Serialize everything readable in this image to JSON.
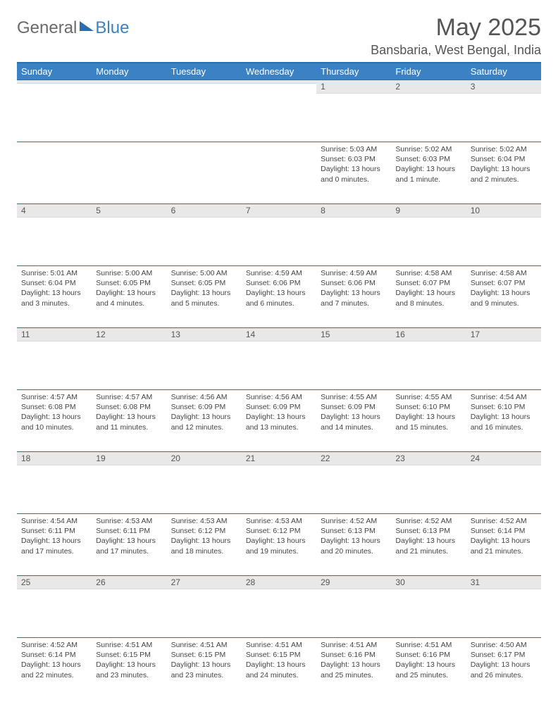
{
  "brand": {
    "text1": "General",
    "text2": "Blue"
  },
  "title": "May 2025",
  "location": "Bansbaria, West Bengal, India",
  "colors": {
    "header_bg": "#3b82c4",
    "border": "#2a6db0",
    "daynum_bg": "#e8e8e8",
    "text": "#444444"
  },
  "weekdays": [
    "Sunday",
    "Monday",
    "Tuesday",
    "Wednesday",
    "Thursday",
    "Friday",
    "Saturday"
  ],
  "weeks": [
    [
      null,
      null,
      null,
      null,
      {
        "n": "1",
        "sr": "Sunrise: 5:03 AM",
        "ss": "Sunset: 6:03 PM",
        "dl": "Daylight: 13 hours and 0 minutes."
      },
      {
        "n": "2",
        "sr": "Sunrise: 5:02 AM",
        "ss": "Sunset: 6:03 PM",
        "dl": "Daylight: 13 hours and 1 minute."
      },
      {
        "n": "3",
        "sr": "Sunrise: 5:02 AM",
        "ss": "Sunset: 6:04 PM",
        "dl": "Daylight: 13 hours and 2 minutes."
      }
    ],
    [
      {
        "n": "4",
        "sr": "Sunrise: 5:01 AM",
        "ss": "Sunset: 6:04 PM",
        "dl": "Daylight: 13 hours and 3 minutes."
      },
      {
        "n": "5",
        "sr": "Sunrise: 5:00 AM",
        "ss": "Sunset: 6:05 PM",
        "dl": "Daylight: 13 hours and 4 minutes."
      },
      {
        "n": "6",
        "sr": "Sunrise: 5:00 AM",
        "ss": "Sunset: 6:05 PM",
        "dl": "Daylight: 13 hours and 5 minutes."
      },
      {
        "n": "7",
        "sr": "Sunrise: 4:59 AM",
        "ss": "Sunset: 6:06 PM",
        "dl": "Daylight: 13 hours and 6 minutes."
      },
      {
        "n": "8",
        "sr": "Sunrise: 4:59 AM",
        "ss": "Sunset: 6:06 PM",
        "dl": "Daylight: 13 hours and 7 minutes."
      },
      {
        "n": "9",
        "sr": "Sunrise: 4:58 AM",
        "ss": "Sunset: 6:07 PM",
        "dl": "Daylight: 13 hours and 8 minutes."
      },
      {
        "n": "10",
        "sr": "Sunrise: 4:58 AM",
        "ss": "Sunset: 6:07 PM",
        "dl": "Daylight: 13 hours and 9 minutes."
      }
    ],
    [
      {
        "n": "11",
        "sr": "Sunrise: 4:57 AM",
        "ss": "Sunset: 6:08 PM",
        "dl": "Daylight: 13 hours and 10 minutes."
      },
      {
        "n": "12",
        "sr": "Sunrise: 4:57 AM",
        "ss": "Sunset: 6:08 PM",
        "dl": "Daylight: 13 hours and 11 minutes."
      },
      {
        "n": "13",
        "sr": "Sunrise: 4:56 AM",
        "ss": "Sunset: 6:09 PM",
        "dl": "Daylight: 13 hours and 12 minutes."
      },
      {
        "n": "14",
        "sr": "Sunrise: 4:56 AM",
        "ss": "Sunset: 6:09 PM",
        "dl": "Daylight: 13 hours and 13 minutes."
      },
      {
        "n": "15",
        "sr": "Sunrise: 4:55 AM",
        "ss": "Sunset: 6:09 PM",
        "dl": "Daylight: 13 hours and 14 minutes."
      },
      {
        "n": "16",
        "sr": "Sunrise: 4:55 AM",
        "ss": "Sunset: 6:10 PM",
        "dl": "Daylight: 13 hours and 15 minutes."
      },
      {
        "n": "17",
        "sr": "Sunrise: 4:54 AM",
        "ss": "Sunset: 6:10 PM",
        "dl": "Daylight: 13 hours and 16 minutes."
      }
    ],
    [
      {
        "n": "18",
        "sr": "Sunrise: 4:54 AM",
        "ss": "Sunset: 6:11 PM",
        "dl": "Daylight: 13 hours and 17 minutes."
      },
      {
        "n": "19",
        "sr": "Sunrise: 4:53 AM",
        "ss": "Sunset: 6:11 PM",
        "dl": "Daylight: 13 hours and 17 minutes."
      },
      {
        "n": "20",
        "sr": "Sunrise: 4:53 AM",
        "ss": "Sunset: 6:12 PM",
        "dl": "Daylight: 13 hours and 18 minutes."
      },
      {
        "n": "21",
        "sr": "Sunrise: 4:53 AM",
        "ss": "Sunset: 6:12 PM",
        "dl": "Daylight: 13 hours and 19 minutes."
      },
      {
        "n": "22",
        "sr": "Sunrise: 4:52 AM",
        "ss": "Sunset: 6:13 PM",
        "dl": "Daylight: 13 hours and 20 minutes."
      },
      {
        "n": "23",
        "sr": "Sunrise: 4:52 AM",
        "ss": "Sunset: 6:13 PM",
        "dl": "Daylight: 13 hours and 21 minutes."
      },
      {
        "n": "24",
        "sr": "Sunrise: 4:52 AM",
        "ss": "Sunset: 6:14 PM",
        "dl": "Daylight: 13 hours and 21 minutes."
      }
    ],
    [
      {
        "n": "25",
        "sr": "Sunrise: 4:52 AM",
        "ss": "Sunset: 6:14 PM",
        "dl": "Daylight: 13 hours and 22 minutes."
      },
      {
        "n": "26",
        "sr": "Sunrise: 4:51 AM",
        "ss": "Sunset: 6:15 PM",
        "dl": "Daylight: 13 hours and 23 minutes."
      },
      {
        "n": "27",
        "sr": "Sunrise: 4:51 AM",
        "ss": "Sunset: 6:15 PM",
        "dl": "Daylight: 13 hours and 23 minutes."
      },
      {
        "n": "28",
        "sr": "Sunrise: 4:51 AM",
        "ss": "Sunset: 6:15 PM",
        "dl": "Daylight: 13 hours and 24 minutes."
      },
      {
        "n": "29",
        "sr": "Sunrise: 4:51 AM",
        "ss": "Sunset: 6:16 PM",
        "dl": "Daylight: 13 hours and 25 minutes."
      },
      {
        "n": "30",
        "sr": "Sunrise: 4:51 AM",
        "ss": "Sunset: 6:16 PM",
        "dl": "Daylight: 13 hours and 25 minutes."
      },
      {
        "n": "31",
        "sr": "Sunrise: 4:50 AM",
        "ss": "Sunset: 6:17 PM",
        "dl": "Daylight: 13 hours and 26 minutes."
      }
    ]
  ]
}
